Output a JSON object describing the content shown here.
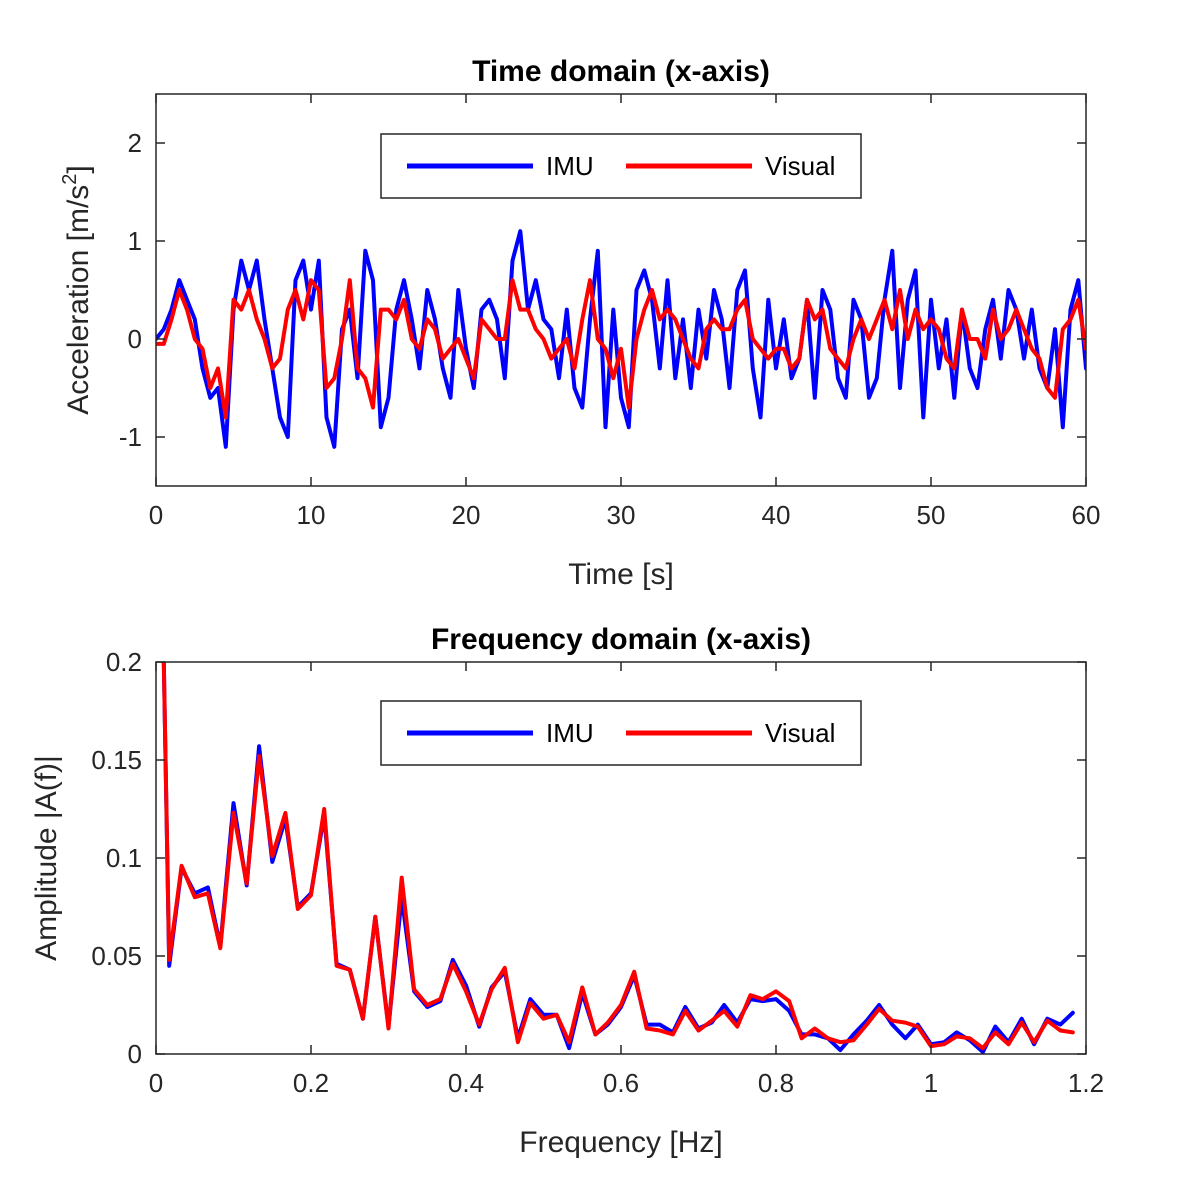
{
  "colors": {
    "imu": "#0000ff",
    "visual": "#ff0000",
    "axis": "#262626",
    "background": "#ffffff"
  },
  "chart_data": [
    {
      "type": "line",
      "title": "Time domain (x-axis)",
      "xlabel": "Time [s]",
      "ylabel_text": "Acceleration [m/s",
      "ylabel_sup": "2",
      "ylabel_close": "]",
      "xlim": [
        0,
        60
      ],
      "ylim": [
        -1.5,
        2.5
      ],
      "xticks": [
        0,
        10,
        20,
        30,
        40,
        50,
        60
      ],
      "xtick_labels": [
        "0",
        "10",
        "20",
        "30",
        "40",
        "50",
        "60"
      ],
      "yticks": [
        -1,
        0,
        1,
        2
      ],
      "ytick_labels": [
        "-1",
        "0",
        "1",
        "2"
      ],
      "legend": {
        "position": "top-center",
        "entries": [
          "IMU",
          "Visual"
        ]
      },
      "series": [
        {
          "name": "IMU",
          "color": "#0000ff",
          "x": [
            0,
            0.5,
            1,
            1.5,
            2,
            2.5,
            3,
            3.5,
            4,
            4.5,
            5,
            5.5,
            6,
            6.5,
            7,
            7.5,
            8,
            8.5,
            9,
            9.5,
            10,
            10.5,
            11,
            11.5,
            12,
            12.5,
            13,
            13.5,
            14,
            14.5,
            15,
            15.5,
            16,
            16.5,
            17,
            17.5,
            18,
            18.5,
            19,
            19.5,
            20,
            20.5,
            21,
            21.5,
            22,
            22.5,
            23,
            23.5,
            24,
            24.5,
            25,
            25.5,
            26,
            26.5,
            27,
            27.5,
            28,
            28.5,
            29,
            29.5,
            30,
            30.5,
            31,
            31.5,
            32,
            32.5,
            33,
            33.5,
            34,
            34.5,
            35,
            35.5,
            36,
            36.5,
            37,
            37.5,
            38,
            38.5,
            39,
            39.5,
            40,
            40.5,
            41,
            41.5,
            42,
            42.5,
            43,
            43.5,
            44,
            44.5,
            45,
            45.5,
            46,
            46.5,
            47,
            47.5,
            48,
            48.5,
            49,
            49.5,
            50,
            50.5,
            51,
            51.5,
            52,
            52.5,
            53,
            53.5,
            54,
            54.5,
            55,
            55.5,
            56,
            56.5,
            57,
            57.5,
            58,
            58.5,
            59,
            59.5,
            60
          ],
          "y": [
            0,
            0.1,
            0.3,
            0.6,
            0.4,
            0.2,
            -0.3,
            -0.6,
            -0.5,
            -1.1,
            0.3,
            0.8,
            0.5,
            0.8,
            0.2,
            -0.3,
            -0.8,
            -1.0,
            0.6,
            0.8,
            0.3,
            0.8,
            -0.8,
            -1.1,
            0.1,
            0.3,
            -0.4,
            0.9,
            0.6,
            -0.9,
            -0.6,
            0.3,
            0.6,
            0.2,
            -0.3,
            0.5,
            0.2,
            -0.3,
            -0.6,
            0.5,
            -0.1,
            -0.5,
            0.3,
            0.4,
            0.2,
            -0.4,
            0.8,
            1.1,
            0.3,
            0.6,
            0.2,
            0.1,
            -0.4,
            0.3,
            -0.5,
            -0.7,
            0.2,
            0.9,
            -0.9,
            0.3,
            -0.6,
            -0.9,
            0.5,
            0.7,
            0.4,
            -0.3,
            0.6,
            -0.4,
            0.2,
            -0.5,
            0.3,
            -0.2,
            0.5,
            0.2,
            -0.5,
            0.5,
            0.7,
            -0.3,
            -0.8,
            0.4,
            -0.3,
            0.2,
            -0.4,
            -0.2,
            0.4,
            -0.6,
            0.5,
            0.3,
            -0.4,
            -0.6,
            0.4,
            0.2,
            -0.6,
            -0.4,
            0.4,
            0.9,
            -0.5,
            0.4,
            0.7,
            -0.8,
            0.4,
            -0.3,
            0.2,
            -0.6,
            0.3,
            -0.3,
            -0.5,
            0.1,
            0.4,
            -0.2,
            0.5,
            0.3,
            -0.2,
            0.3,
            -0.3,
            -0.5,
            0.1,
            -0.9,
            0.3,
            0.6,
            -0.3
          ]
        },
        {
          "name": "Visual",
          "color": "#ff0000",
          "x": [
            0,
            0.5,
            1,
            1.5,
            2,
            2.5,
            3,
            3.5,
            4,
            4.5,
            5,
            5.5,
            6,
            6.5,
            7,
            7.5,
            8,
            8.5,
            9,
            9.5,
            10,
            10.5,
            11,
            11.5,
            12,
            12.5,
            13,
            13.5,
            14,
            14.5,
            15,
            15.5,
            16,
            16.5,
            17,
            17.5,
            18,
            18.5,
            19,
            19.5,
            20,
            20.5,
            21,
            21.5,
            22,
            22.5,
            23,
            23.5,
            24,
            24.5,
            25,
            25.5,
            26,
            26.5,
            27,
            27.5,
            28,
            28.5,
            29,
            29.5,
            30,
            30.5,
            31,
            31.5,
            32,
            32.5,
            33,
            33.5,
            34,
            34.5,
            35,
            35.5,
            36,
            36.5,
            37,
            37.5,
            38,
            38.5,
            39,
            39.5,
            40,
            40.5,
            41,
            41.5,
            42,
            42.5,
            43,
            43.5,
            44,
            44.5,
            45,
            45.5,
            46,
            46.5,
            47,
            47.5,
            48,
            48.5,
            49,
            49.5,
            50,
            50.5,
            51,
            51.5,
            52,
            52.5,
            53,
            53.5,
            54,
            54.5,
            55,
            55.5,
            56,
            56.5,
            57,
            57.5,
            58,
            58.5,
            59,
            59.5,
            60
          ],
          "y": [
            -0.05,
            -0.05,
            0.2,
            0.5,
            0.3,
            0,
            -0.1,
            -0.5,
            -0.3,
            -0.8,
            0.4,
            0.3,
            0.5,
            0.2,
            0,
            -0.3,
            -0.2,
            0.3,
            0.5,
            0.2,
            0.6,
            0.5,
            -0.5,
            -0.4,
            0,
            0.6,
            -0.3,
            -0.4,
            -0.7,
            0.3,
            0.3,
            0.2,
            0.4,
            0,
            -0.1,
            0.2,
            0.1,
            -0.2,
            -0.1,
            0,
            -0.2,
            -0.4,
            0.2,
            0.1,
            0,
            0,
            0.6,
            0.3,
            0.3,
            0.1,
            0,
            -0.2,
            -0.1,
            0,
            -0.3,
            0.2,
            0.6,
            0,
            -0.1,
            -0.4,
            -0.1,
            -0.7,
            0,
            0.3,
            0.5,
            0.2,
            0.3,
            0.2,
            0,
            -0.2,
            -0.3,
            0.1,
            0.2,
            0.1,
            0.1,
            0.3,
            0.4,
            0,
            -0.1,
            -0.2,
            -0.1,
            -0.1,
            -0.3,
            -0.2,
            0.4,
            0.2,
            0.3,
            -0.1,
            -0.2,
            -0.3,
            0,
            0.2,
            0,
            0.2,
            0.4,
            0.1,
            0.5,
            0,
            0.3,
            0.1,
            0.2,
            0.1,
            -0.2,
            -0.3,
            0.3,
            0,
            0,
            -0.2,
            0.3,
            0,
            0.1,
            0.3,
            0.1,
            -0.1,
            -0.2,
            -0.5,
            -0.6,
            0.1,
            0.2,
            0.4,
            -0.1
          ]
        }
      ]
    },
    {
      "type": "line",
      "title": "Frequency domain (x-axis)",
      "xlabel": "Frequency [Hz]",
      "ylabel_text": "Amplitude |A(f)|",
      "xlim": [
        0,
        1.2
      ],
      "ylim": [
        0,
        0.2
      ],
      "xticks": [
        0,
        0.2,
        0.4,
        0.6,
        0.8,
        1,
        1.2
      ],
      "xtick_labels": [
        "0",
        "0.2",
        "0.4",
        "0.6",
        "0.8",
        "1",
        "1.2"
      ],
      "yticks": [
        0,
        0.05,
        0.1,
        0.15,
        0.2
      ],
      "ytick_labels": [
        "0",
        "0.05",
        "0.1",
        "0.15",
        "0.2"
      ],
      "legend": {
        "position": "top-center",
        "entries": [
          "IMU",
          "Visual"
        ]
      },
      "series": [
        {
          "name": "IMU",
          "color": "#0000ff",
          "x": [
            0.01,
            0.017,
            0.033,
            0.05,
            0.067,
            0.083,
            0.1,
            0.117,
            0.133,
            0.15,
            0.167,
            0.183,
            0.2,
            0.217,
            0.233,
            0.25,
            0.267,
            0.283,
            0.3,
            0.317,
            0.333,
            0.35,
            0.367,
            0.383,
            0.4,
            0.417,
            0.433,
            0.45,
            0.467,
            0.483,
            0.5,
            0.517,
            0.533,
            0.55,
            0.567,
            0.583,
            0.6,
            0.617,
            0.633,
            0.65,
            0.667,
            0.683,
            0.7,
            0.717,
            0.733,
            0.75,
            0.767,
            0.783,
            0.8,
            0.817,
            0.833,
            0.85,
            0.867,
            0.883,
            0.9,
            0.917,
            0.933,
            0.95,
            0.967,
            0.983,
            1,
            1.017,
            1.033,
            1.05,
            1.067,
            1.083,
            1.1,
            1.117,
            1.133,
            1.15,
            1.167,
            1.183
          ],
          "y": [
            0.2,
            0.045,
            0.095,
            0.082,
            0.085,
            0.055,
            0.128,
            0.086,
            0.157,
            0.098,
            0.12,
            0.075,
            0.082,
            0.122,
            0.046,
            0.043,
            0.018,
            0.07,
            0.014,
            0.08,
            0.032,
            0.024,
            0.027,
            0.048,
            0.035,
            0.014,
            0.034,
            0.042,
            0.008,
            0.028,
            0.02,
            0.02,
            0.003,
            0.031,
            0.01,
            0.015,
            0.024,
            0.04,
            0.015,
            0.015,
            0.011,
            0.024,
            0.013,
            0.016,
            0.025,
            0.016,
            0.028,
            0.027,
            0.028,
            0.022,
            0.01,
            0.01,
            0.008,
            0.002,
            0.01,
            0.017,
            0.025,
            0.015,
            0.008,
            0.015,
            0.005,
            0.006,
            0.011,
            0.007,
            0.001,
            0.014,
            0.006,
            0.018,
            0.005,
            0.018,
            0.015,
            0.021
          ]
        },
        {
          "name": "Visual",
          "color": "#ff0000",
          "x": [
            0.01,
            0.017,
            0.033,
            0.05,
            0.067,
            0.083,
            0.1,
            0.117,
            0.133,
            0.15,
            0.167,
            0.183,
            0.2,
            0.217,
            0.233,
            0.25,
            0.267,
            0.283,
            0.3,
            0.317,
            0.333,
            0.35,
            0.367,
            0.383,
            0.4,
            0.417,
            0.433,
            0.45,
            0.467,
            0.483,
            0.5,
            0.517,
            0.533,
            0.55,
            0.567,
            0.583,
            0.6,
            0.617,
            0.633,
            0.65,
            0.667,
            0.683,
            0.7,
            0.717,
            0.733,
            0.75,
            0.767,
            0.783,
            0.8,
            0.817,
            0.833,
            0.85,
            0.867,
            0.883,
            0.9,
            0.917,
            0.933,
            0.95,
            0.967,
            0.983,
            1,
            1.017,
            1.033,
            1.05,
            1.067,
            1.083,
            1.1,
            1.117,
            1.133,
            1.15,
            1.167,
            1.183
          ],
          "y": [
            0.2,
            0.048,
            0.096,
            0.08,
            0.082,
            0.054,
            0.123,
            0.087,
            0.152,
            0.101,
            0.123,
            0.074,
            0.081,
            0.125,
            0.045,
            0.043,
            0.018,
            0.07,
            0.013,
            0.09,
            0.033,
            0.025,
            0.028,
            0.046,
            0.032,
            0.015,
            0.033,
            0.044,
            0.006,
            0.026,
            0.018,
            0.02,
            0.006,
            0.034,
            0.01,
            0.016,
            0.025,
            0.042,
            0.013,
            0.012,
            0.01,
            0.022,
            0.012,
            0.017,
            0.022,
            0.014,
            0.03,
            0.028,
            0.032,
            0.027,
            0.008,
            0.013,
            0.008,
            0.006,
            0.007,
            0.015,
            0.023,
            0.017,
            0.016,
            0.014,
            0.004,
            0.005,
            0.009,
            0.008,
            0.003,
            0.011,
            0.005,
            0.016,
            0.006,
            0.017,
            0.012,
            0.011
          ]
        }
      ]
    }
  ]
}
